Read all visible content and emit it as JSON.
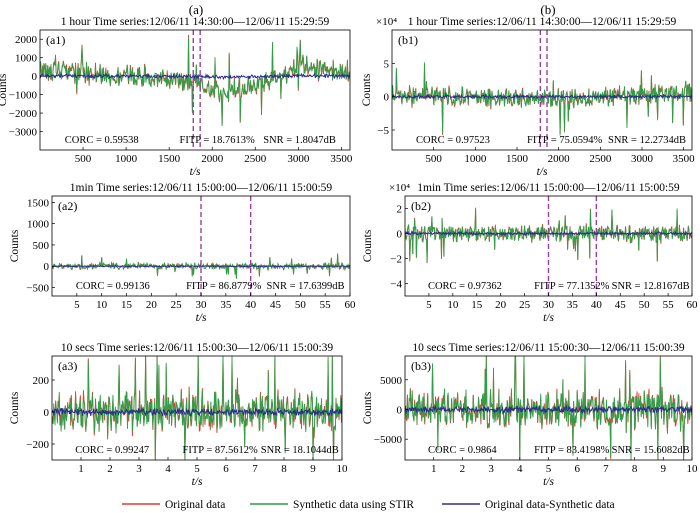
{
  "figure": {
    "column_labels": [
      "(a)",
      "(b)"
    ],
    "legend": [
      {
        "label": "Original data",
        "color": "#e8382b"
      },
      {
        "label": "Synthetic data using STIR",
        "color": "#2e9e47"
      },
      {
        "label": "Original data-Synthetic data",
        "color": "#2a2f8a"
      }
    ],
    "colors": {
      "original": "#e8382b",
      "synthetic": "#2e9e47",
      "residual": "#2a2f8a",
      "marker": "#9a3fa6"
    }
  },
  "chart_data": [
    {
      "id": "a1",
      "type": "line",
      "panel_label": "(a1)",
      "title": "1 hour Time series:12/06/11 14:30:00—12/06/11 15:29:59",
      "xlabel": "t/s",
      "ylabel": "Counts",
      "exponent_label": "",
      "xlim": [
        0,
        3600
      ],
      "ylim": [
        -4000,
        2500
      ],
      "xticks": [
        500,
        1000,
        1500,
        2000,
        2500,
        3000,
        3500
      ],
      "yticks": [
        2000,
        1000,
        0,
        -1000,
        -2000,
        -3000
      ],
      "ytick_labels": [
        "2000",
        "1000",
        "0",
        "−1000",
        "−2000",
        "−3000"
      ],
      "markers": [
        1780,
        1860
      ],
      "amplitude": 700,
      "trend": [
        [
          0,
          350
        ],
        [
          400,
          250
        ],
        [
          800,
          50
        ],
        [
          1100,
          0
        ],
        [
          1300,
          -100
        ],
        [
          1500,
          -150
        ],
        [
          1700,
          -250
        ],
        [
          1850,
          -400
        ],
        [
          2000,
          -700
        ],
        [
          2150,
          -850
        ],
        [
          2300,
          -700
        ],
        [
          2500,
          -500
        ],
        [
          2700,
          -150
        ],
        [
          2900,
          200
        ],
        [
          3000,
          700
        ],
        [
          3100,
          600
        ],
        [
          3200,
          400
        ],
        [
          3400,
          300
        ],
        [
          3600,
          100
        ]
      ],
      "stats": {
        "corc": "CORC = 0.59538",
        "fitp": "FITP = 18.7613%",
        "snr": "SNR = 1.8047dB"
      }
    },
    {
      "id": "b1",
      "type": "line",
      "panel_label": "(b1)",
      "title": "1 hour Time series:12/06/11 14:30:00—12/06/11 15:29:59",
      "xlabel": "t/s",
      "ylabel": "Counts",
      "exponent_label": "×10⁴",
      "xlim": [
        0,
        3600
      ],
      "ylim": [
        -8,
        10
      ],
      "xticks": [
        500,
        1000,
        1500,
        2000,
        2500,
        3000,
        3500
      ],
      "yticks": [
        5,
        0,
        -5
      ],
      "ytick_labels": [
        "5",
        "0",
        "−5"
      ],
      "markers": [
        1780,
        1860
      ],
      "amplitude": 1.8,
      "trend": [
        [
          0,
          0.2
        ],
        [
          1000,
          0
        ],
        [
          1800,
          -0.3
        ],
        [
          2100,
          -0.4
        ],
        [
          2600,
          0
        ],
        [
          3000,
          0.3
        ],
        [
          3600,
          0.6
        ]
      ],
      "stats": {
        "corc": "CORC = 0.97523",
        "fitp": "FITP = 75.0594%",
        "snr": "SNR = 12.2734dB"
      }
    },
    {
      "id": "a2",
      "type": "line",
      "panel_label": "(a2)",
      "title": "1min Time series:12/06/11 15:00:00—12/06/11 15:00:59",
      "xlabel": "t/s",
      "ylabel": "Counts",
      "exponent_label": "",
      "xlim": [
        0,
        60
      ],
      "ylim": [
        -700,
        1650
      ],
      "xticks": [
        5,
        10,
        15,
        20,
        25,
        30,
        35,
        40,
        45,
        50,
        55,
        60
      ],
      "yticks": [
        1500,
        1000,
        500,
        0,
        -500
      ],
      "ytick_labels": [
        "1500",
        "1000",
        "500",
        "0",
        "−500"
      ],
      "markers": [
        30,
        40
      ],
      "amplitude": 90,
      "trend": [
        [
          0,
          0
        ],
        [
          60,
          0
        ]
      ],
      "stats": {
        "corc": "CORC = 0.99136",
        "fitp": "FITP = 86.8779%",
        "snr": "SNR = 17.6399dB"
      }
    },
    {
      "id": "b2",
      "type": "line",
      "panel_label": "(b2)",
      "title": "1min Time series:12/06/11 15:00:00—12/06/11 15:00:59",
      "xlabel": "t/s",
      "ylabel": "Counts",
      "exponent_label": "×10⁴",
      "xlim": [
        0,
        60
      ],
      "ylim": [
        -5,
        3
      ],
      "xticks": [
        5,
        10,
        15,
        20,
        25,
        30,
        35,
        40,
        45,
        50,
        55,
        60
      ],
      "yticks": [
        2,
        0,
        -2,
        -4
      ],
      "ytick_labels": [
        "2",
        "0",
        "−2",
        "−4"
      ],
      "markers": [
        30,
        40
      ],
      "amplitude": 0.8,
      "trend": [
        [
          0,
          0
        ],
        [
          60,
          0
        ]
      ],
      "stats": {
        "corc": "CORC = 0.97362",
        "fitp": "FITP = 77.1352%",
        "snr": "SNR = 12.8167dB"
      }
    },
    {
      "id": "a3",
      "type": "line",
      "panel_label": "(a3)",
      "title": "10 secs Time series:12/06/11 15:00:30—12/06/11 15:00:39",
      "xlabel": "t/s",
      "ylabel": "Counts",
      "exponent_label": "",
      "xlim": [
        0,
        10
      ],
      "ylim": [
        -300,
        350
      ],
      "xticks": [
        1,
        2,
        3,
        4,
        5,
        6,
        7,
        8,
        9,
        10
      ],
      "yticks": [
        200,
        0,
        -200
      ],
      "ytick_labels": [
        "200",
        "0",
        "−200"
      ],
      "markers": [],
      "amplitude": 160,
      "trend": [
        [
          0,
          0
        ],
        [
          10,
          0
        ]
      ],
      "stats": {
        "corc": "CORC = 0.99247",
        "fitp": "FITP = 87.5612%",
        "snr": "SNR = 18.1044dB"
      }
    },
    {
      "id": "b3",
      "type": "line",
      "panel_label": "(b3)",
      "title": "10 secs Time series:12/06/11 15:00:30—12/06/11 15:00:39",
      "xlabel": "t/s",
      "ylabel": "Counts",
      "exponent_label": "",
      "xlim": [
        0,
        10
      ],
      "ylim": [
        -8500,
        9000
      ],
      "xticks": [
        1,
        2,
        3,
        4,
        5,
        6,
        7,
        8,
        9,
        10
      ],
      "yticks": [
        5000,
        0,
        -5000
      ],
      "ytick_labels": [
        "5000",
        "0",
        "−5000"
      ],
      "markers": [],
      "amplitude": 4000,
      "trend": [
        [
          0,
          0
        ],
        [
          10,
          0
        ]
      ],
      "stats": {
        "corc": "CORC = 0.9864",
        "fitp": "FITP = 83.4198%",
        "snr": "SNR = 15.6082dB"
      }
    }
  ]
}
